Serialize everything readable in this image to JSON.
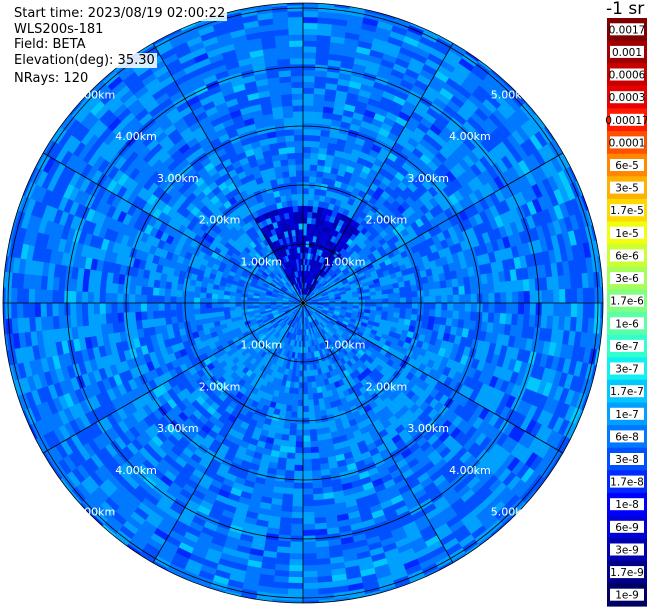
{
  "info": {
    "start_time": "Start time: 2023/08/19 02:00:22",
    "instrument": "WLS200s-181",
    "field": "Field: BETA",
    "elevation": "Elevation(deg): 35.30",
    "nrays": "NRays: 120"
  },
  "chart_data": {
    "type": "heatmap",
    "projection": "polar",
    "field": "BETA",
    "n_rays": 120,
    "elevation_deg": 35.3,
    "range_unit": "km",
    "range_rings": [
      1.0,
      2.0,
      3.0,
      4.0,
      5.0
    ],
    "range_ring_labels": [
      "1.00km",
      "2.00km",
      "3.00km",
      "4.00km",
      "5.00km"
    ],
    "max_range_km": 5.0,
    "background_level": 5e-08,
    "features": [
      {
        "azimuth_deg_from_north": 5,
        "range_km": [
          0.1,
          1.6
        ],
        "level": 6e-09
      },
      {
        "azimuth_deg_from_north": 230,
        "range_km": [
          0.6,
          1.8
        ],
        "level": 1e-07
      },
      {
        "azimuth_deg_from_north": 145,
        "range_km": [
          1.8,
          2.6
        ],
        "level": 1e-07
      }
    ],
    "colorbar": {
      "title": "-1 sr",
      "labels": [
        "0.0017",
        "0.001",
        "0.0006",
        "0.0003",
        "0.00017",
        "0.0001",
        "6e-5",
        "3e-5",
        "1.7e-5",
        "1e-5",
        "6e-6",
        "3e-6",
        "1.7e-6",
        "1e-6",
        "6e-7",
        "3e-7",
        "1.7e-7",
        "1e-7",
        "6e-8",
        "3e-8",
        "1.7e-8",
        "1e-8",
        "6e-9",
        "3e-9",
        "1.7e-9",
        "1e-9"
      ],
      "colors": [
        "#800000",
        "#a00000",
        "#c80000",
        "#e80000",
        "#ff1a00",
        "#ff5000",
        "#ff8800",
        "#ffb000",
        "#ffd800",
        "#f0ff10",
        "#ccff33",
        "#a6ff59",
        "#80ff80",
        "#5affa6",
        "#33ffcc",
        "#10f0f0",
        "#00c8ff",
        "#00a0ff",
        "#0078ff",
        "#0050ff",
        "#0028ff",
        "#0000ff",
        "#0000d8",
        "#0000b0",
        "#000088",
        "#000064"
      ]
    }
  }
}
